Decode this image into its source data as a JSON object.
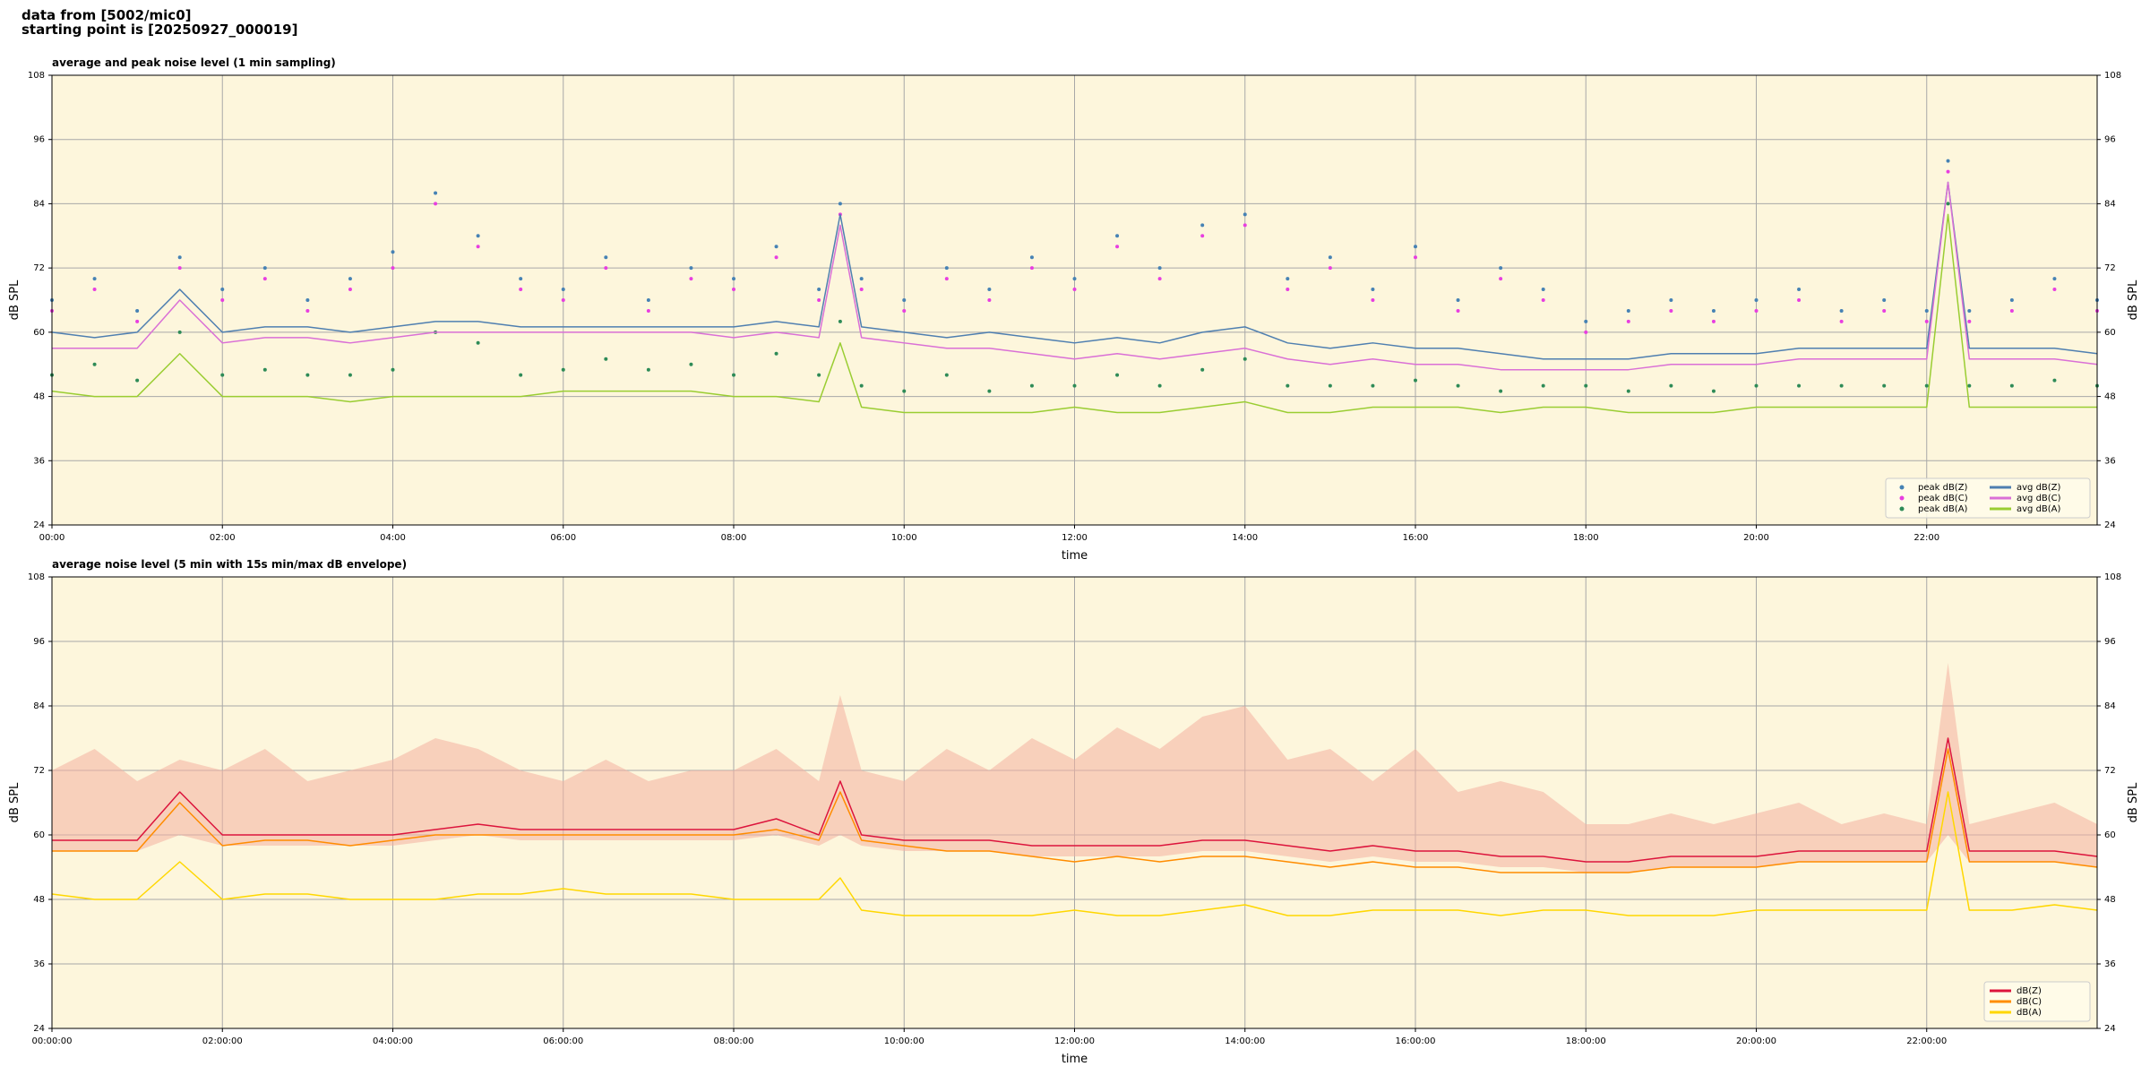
{
  "header": [
    "data from [5002/mic0]",
    "starting point is [20250927_000019]"
  ],
  "chart_data": [
    {
      "type": "line",
      "title": "average and peak noise level (1 min sampling)",
      "xlabel": "time",
      "ylabel": "dB SPL",
      "background": "#fdf6dc",
      "grid": true,
      "legend": "lower right",
      "legend_columns": 2,
      "xlim": [
        0,
        24
      ],
      "ylim": [
        24,
        108
      ],
      "xticks": [
        {
          "value": 0,
          "label": "00:00"
        },
        {
          "value": 2,
          "label": "02:00"
        },
        {
          "value": 4,
          "label": "04:00"
        },
        {
          "value": 6,
          "label": "06:00"
        },
        {
          "value": 8,
          "label": "08:00"
        },
        {
          "value": 10,
          "label": "10:00"
        },
        {
          "value": 12,
          "label": "12:00"
        },
        {
          "value": 14,
          "label": "14:00"
        },
        {
          "value": 16,
          "label": "16:00"
        },
        {
          "value": 18,
          "label": "18:00"
        },
        {
          "value": 20,
          "label": "20:00"
        },
        {
          "value": 22,
          "label": "22:00"
        }
      ],
      "yticks": [
        24,
        36,
        48,
        60,
        72,
        84,
        96,
        108
      ],
      "x": [
        0,
        0.5,
        1,
        1.5,
        2,
        2.5,
        3,
        3.5,
        4,
        4.5,
        5,
        5.5,
        6,
        6.5,
        7,
        7.5,
        8,
        8.5,
        9,
        9.25,
        9.5,
        10,
        10.5,
        11,
        11.5,
        12,
        12.5,
        13,
        13.5,
        14,
        14.5,
        15,
        15.5,
        16,
        16.5,
        17,
        17.5,
        18,
        18.5,
        19,
        19.5,
        20,
        20.5,
        21,
        21.5,
        22,
        22.25,
        22.5,
        23,
        23.5,
        24
      ],
      "series": [
        {
          "name": "peak dB(Z)",
          "kind": "scatter",
          "color": "#4682b4",
          "values": [
            66,
            70,
            64,
            74,
            68,
            72,
            66,
            70,
            75,
            86,
            78,
            70,
            68,
            74,
            66,
            72,
            70,
            76,
            68,
            84,
            70,
            66,
            72,
            68,
            74,
            70,
            78,
            72,
            80,
            82,
            70,
            74,
            68,
            76,
            66,
            72,
            68,
            62,
            64,
            66,
            64,
            66,
            68,
            64,
            66,
            64,
            92,
            64,
            66,
            70,
            66
          ]
        },
        {
          "name": "peak dB(C)",
          "kind": "scatter",
          "color": "#e83ee0",
          "values": [
            64,
            68,
            62,
            72,
            66,
            70,
            64,
            68,
            72,
            84,
            76,
            68,
            66,
            72,
            64,
            70,
            68,
            74,
            66,
            82,
            68,
            64,
            70,
            66,
            72,
            68,
            76,
            70,
            78,
            80,
            68,
            72,
            66,
            74,
            64,
            70,
            66,
            60,
            62,
            64,
            62,
            64,
            66,
            62,
            64,
            62,
            90,
            62,
            64,
            68,
            64
          ]
        },
        {
          "name": "peak dB(A)",
          "kind": "scatter",
          "color": "#2e8b57",
          "values": [
            52,
            54,
            51,
            60,
            52,
            53,
            52,
            52,
            53,
            60,
            58,
            52,
            53,
            55,
            53,
            54,
            52,
            56,
            52,
            62,
            50,
            49,
            52,
            49,
            50,
            50,
            52,
            50,
            53,
            55,
            50,
            50,
            50,
            51,
            50,
            49,
            50,
            50,
            49,
            50,
            49,
            50,
            50,
            50,
            50,
            50,
            84,
            50,
            50,
            51,
            50
          ]
        },
        {
          "name": "avg dB(Z)",
          "kind": "line",
          "color": "#4f7fb0",
          "values": [
            60,
            59,
            60,
            68,
            60,
            61,
            61,
            60,
            61,
            62,
            62,
            61,
            61,
            61,
            61,
            61,
            61,
            62,
            61,
            82,
            61,
            60,
            59,
            60,
            59,
            58,
            59,
            58,
            60,
            61,
            58,
            57,
            58,
            57,
            57,
            56,
            55,
            55,
            55,
            56,
            56,
            56,
            57,
            57,
            57,
            57,
            88,
            57,
            57,
            57,
            56
          ]
        },
        {
          "name": "avg dB(C)",
          "kind": "line",
          "color": "#da70d6",
          "values": [
            57,
            57,
            57,
            66,
            58,
            59,
            59,
            58,
            59,
            60,
            60,
            60,
            60,
            60,
            60,
            60,
            59,
            60,
            59,
            80,
            59,
            58,
            57,
            57,
            56,
            55,
            56,
            55,
            56,
            57,
            55,
            54,
            55,
            54,
            54,
            53,
            53,
            53,
            53,
            54,
            54,
            54,
            55,
            55,
            55,
            55,
            88,
            55,
            55,
            55,
            54
          ]
        },
        {
          "name": "avg dB(A)",
          "kind": "line",
          "color": "#9acd32",
          "values": [
            49,
            48,
            48,
            56,
            48,
            48,
            48,
            47,
            48,
            48,
            48,
            48,
            49,
            49,
            49,
            49,
            48,
            48,
            47,
            58,
            46,
            45,
            45,
            45,
            45,
            46,
            45,
            45,
            46,
            47,
            45,
            45,
            46,
            46,
            46,
            45,
            46,
            46,
            45,
            45,
            45,
            46,
            46,
            46,
            46,
            46,
            82,
            46,
            46,
            46,
            46
          ]
        }
      ]
    },
    {
      "type": "line",
      "title": "average noise level (5 min with 15s min/max dB envelope)",
      "xlabel": "time",
      "ylabel": "dB SPL",
      "background": "#fdf6dc",
      "grid": true,
      "legend": "lower right",
      "legend_columns": 1,
      "xlim": [
        0,
        24
      ],
      "ylim": [
        24,
        108
      ],
      "xticks": [
        {
          "value": 0,
          "label": "00:00:00"
        },
        {
          "value": 2,
          "label": "02:00:00"
        },
        {
          "value": 4,
          "label": "04:00:00"
        },
        {
          "value": 6,
          "label": "06:00:00"
        },
        {
          "value": 8,
          "label": "08:00:00"
        },
        {
          "value": 10,
          "label": "10:00:00"
        },
        {
          "value": 12,
          "label": "12:00:00"
        },
        {
          "value": 14,
          "label": "14:00:00"
        },
        {
          "value": 16,
          "label": "16:00:00"
        },
        {
          "value": 18,
          "label": "18:00:00"
        },
        {
          "value": 20,
          "label": "20:00:00"
        },
        {
          "value": 22,
          "label": "22:00:00"
        }
      ],
      "yticks": [
        24,
        36,
        48,
        60,
        72,
        84,
        96,
        108
      ],
      "x": [
        0,
        0.5,
        1,
        1.5,
        2,
        2.5,
        3,
        3.5,
        4,
        4.5,
        5,
        5.5,
        6,
        6.5,
        7,
        7.5,
        8,
        8.5,
        9,
        9.25,
        9.5,
        10,
        10.5,
        11,
        11.5,
        12,
        12.5,
        13,
        13.5,
        14,
        14.5,
        15,
        15.5,
        16,
        16.5,
        17,
        17.5,
        18,
        18.5,
        19,
        19.5,
        20,
        20.5,
        21,
        21.5,
        22,
        22.25,
        22.5,
        23,
        23.5,
        24
      ],
      "envelope": {
        "color": "#f4b0a0",
        "upper": [
          72,
          76,
          70,
          74,
          72,
          76,
          70,
          72,
          74,
          78,
          76,
          72,
          70,
          74,
          70,
          72,
          72,
          76,
          70,
          86,
          72,
          70,
          76,
          72,
          78,
          74,
          80,
          76,
          82,
          84,
          74,
          76,
          70,
          76,
          68,
          70,
          68,
          62,
          62,
          64,
          62,
          64,
          66,
          62,
          64,
          62,
          92,
          62,
          64,
          66,
          62
        ],
        "lower": [
          57,
          57,
          57,
          60,
          58,
          58,
          58,
          58,
          58,
          59,
          60,
          59,
          59,
          59,
          59,
          59,
          59,
          60,
          58,
          60,
          58,
          57,
          57,
          57,
          56,
          56,
          56,
          56,
          57,
          57,
          56,
          55,
          56,
          55,
          55,
          54,
          54,
          53,
          53,
          54,
          54,
          54,
          55,
          55,
          55,
          55,
          60,
          55,
          55,
          55,
          54
        ]
      },
      "series": [
        {
          "name": "dB(Z)",
          "kind": "line",
          "color": "#dc143c",
          "values": [
            59,
            59,
            59,
            68,
            60,
            60,
            60,
            60,
            60,
            61,
            62,
            61,
            61,
            61,
            61,
            61,
            61,
            63,
            60,
            70,
            60,
            59,
            59,
            59,
            58,
            58,
            58,
            58,
            59,
            59,
            58,
            57,
            58,
            57,
            57,
            56,
            56,
            55,
            55,
            56,
            56,
            56,
            57,
            57,
            57,
            57,
            78,
            57,
            57,
            57,
            56
          ]
        },
        {
          "name": "dB(C)",
          "kind": "line",
          "color": "#ff8c00",
          "values": [
            57,
            57,
            57,
            66,
            58,
            59,
            59,
            58,
            59,
            60,
            60,
            60,
            60,
            60,
            60,
            60,
            60,
            61,
            59,
            68,
            59,
            58,
            57,
            57,
            56,
            55,
            56,
            55,
            56,
            56,
            55,
            54,
            55,
            54,
            54,
            53,
            53,
            53,
            53,
            54,
            54,
            54,
            55,
            55,
            55,
            55,
            76,
            55,
            55,
            55,
            54
          ]
        },
        {
          "name": "dB(A)",
          "kind": "line",
          "color": "#ffd700",
          "values": [
            49,
            48,
            48,
            55,
            48,
            49,
            49,
            48,
            48,
            48,
            49,
            49,
            50,
            49,
            49,
            49,
            48,
            48,
            48,
            52,
            46,
            45,
            45,
            45,
            45,
            46,
            45,
            45,
            46,
            47,
            45,
            45,
            46,
            46,
            46,
            45,
            46,
            46,
            45,
            45,
            45,
            46,
            46,
            46,
            46,
            46,
            68,
            46,
            46,
            47,
            46
          ]
        }
      ]
    }
  ]
}
